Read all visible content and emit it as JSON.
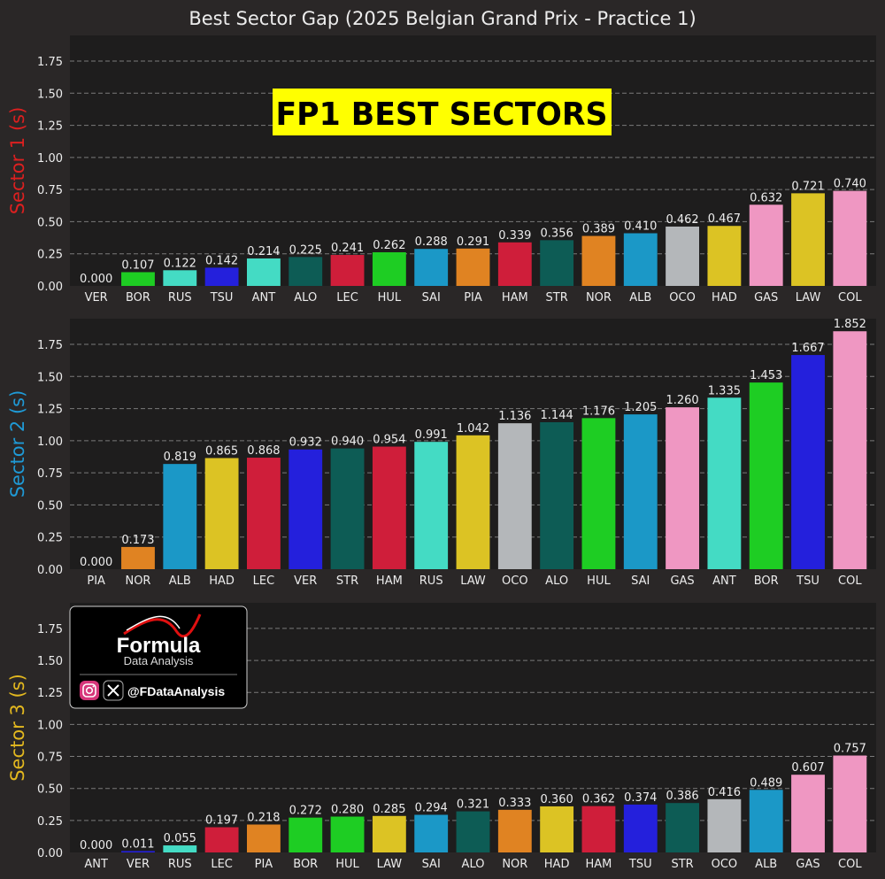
{
  "chart_data": {
    "type": "bar",
    "title": "Best Sector Gap (2025 Belgian Grand Prix - Practice 1)",
    "banner": "FP1 BEST SECTORS",
    "ylim": [
      0,
      1.95
    ],
    "yticks": [
      "0.00",
      "0.25",
      "0.50",
      "0.75",
      "1.00",
      "1.25",
      "1.50",
      "1.75"
    ],
    "grid": true,
    "team_colors": {
      "VER": "#2420dc",
      "TSU": "#2420dc",
      "BOR": "#1ecd23",
      "HUL": "#1ecd23",
      "RUS": "#44dbc4",
      "ANT": "#44dbc4",
      "ALO": "#0d5c55",
      "STR": "#0d5c55",
      "LEC": "#cf1e3a",
      "HAM": "#cf1e3a",
      "SAI": "#1b98c7",
      "ALB": "#1b98c7",
      "PIA": "#e08322",
      "NOR": "#e08322",
      "OCO": "#b4b7ba",
      "HAD": "#dcc324",
      "LAW": "#dcc324",
      "GAS": "#ef97c2",
      "COL": "#ef97c2"
    },
    "panels": [
      {
        "ylabel": "Sector 1 (s)",
        "ylabel_color": "#dd2020",
        "categories": [
          "VER",
          "BOR",
          "RUS",
          "TSU",
          "ANT",
          "ALO",
          "LEC",
          "HUL",
          "SAI",
          "PIA",
          "HAM",
          "STR",
          "NOR",
          "ALB",
          "OCO",
          "HAD",
          "GAS",
          "LAW",
          "COL"
        ],
        "values": [
          0.0,
          0.107,
          0.122,
          0.142,
          0.214,
          0.225,
          0.241,
          0.262,
          0.288,
          0.291,
          0.339,
          0.356,
          0.389,
          0.41,
          0.462,
          0.467,
          0.632,
          0.721,
          0.74
        ],
        "labels": [
          "0.000",
          "0.107",
          "0.122",
          "0.142",
          "0.214",
          "0.225",
          "0.241",
          "0.262",
          "0.288",
          "0.291",
          "0.339",
          "0.356",
          "0.389",
          "0.410",
          "0.462",
          "0.467",
          "0.632",
          "0.721",
          "0.740"
        ]
      },
      {
        "ylabel": "Sector 2 (s)",
        "ylabel_color": "#1f9ad6",
        "categories": [
          "PIA",
          "NOR",
          "ALB",
          "HAD",
          "LEC",
          "VER",
          "STR",
          "HAM",
          "RUS",
          "LAW",
          "OCO",
          "ALO",
          "HUL",
          "SAI",
          "GAS",
          "ANT",
          "BOR",
          "TSU",
          "COL"
        ],
        "values": [
          0.0,
          0.173,
          0.819,
          0.865,
          0.868,
          0.932,
          0.94,
          0.954,
          0.991,
          1.042,
          1.136,
          1.144,
          1.176,
          1.205,
          1.26,
          1.335,
          1.453,
          1.667,
          1.852
        ],
        "labels": [
          "0.000",
          "0.173",
          "0.819",
          "0.865",
          "0.868",
          "0.932",
          "0.940",
          "0.954",
          "0.991",
          "1.042",
          "1.136",
          "1.144",
          "1.176",
          "1.205",
          "1.260",
          "1.335",
          "1.453",
          "1.667",
          "1.852"
        ]
      },
      {
        "ylabel": "Sector 3 (s)",
        "ylabel_color": "#e3b81f",
        "categories": [
          "ANT",
          "VER",
          "RUS",
          "LEC",
          "PIA",
          "BOR",
          "HUL",
          "LAW",
          "SAI",
          "ALO",
          "NOR",
          "HAD",
          "HAM",
          "TSU",
          "STR",
          "OCO",
          "ALB",
          "GAS",
          "COL"
        ],
        "values": [
          0.0,
          0.011,
          0.055,
          0.197,
          0.218,
          0.272,
          0.28,
          0.285,
          0.294,
          0.321,
          0.333,
          0.36,
          0.362,
          0.374,
          0.386,
          0.416,
          0.489,
          0.607,
          0.757
        ],
        "labels": [
          "0.000",
          "0.011",
          "0.055",
          "0.197",
          "0.218",
          "0.272",
          "0.280",
          "0.285",
          "0.294",
          "0.321",
          "0.333",
          "0.360",
          "0.362",
          "0.374",
          "0.386",
          "0.416",
          "0.489",
          "0.607",
          "0.757"
        ]
      }
    ]
  },
  "logo": {
    "line1": "Formula",
    "line2": "Data Analysis",
    "handle": "@FDataAnalysis",
    "icons": [
      "instagram-icon",
      "x-icon"
    ]
  }
}
